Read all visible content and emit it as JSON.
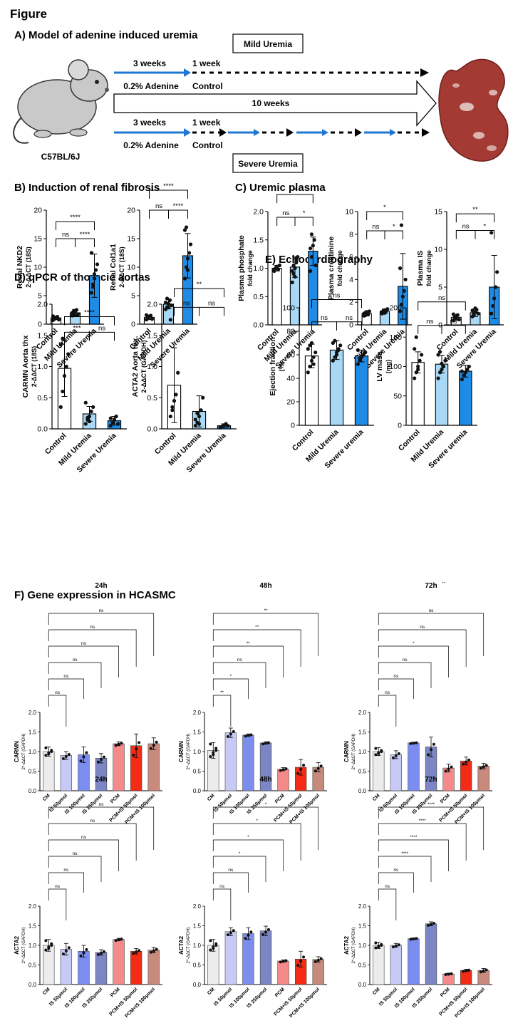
{
  "figure_title": "Figure",
  "panel_a": {
    "title": "A) Model of adenine induced uremia",
    "mild_label": "Mild Uremia",
    "severe_label": "Severe Uremia",
    "mouse_label": "C57BL/6J",
    "three_weeks": "3 weeks",
    "one_week": "1 week",
    "adenine": "0.2% Adenine",
    "control": "Control",
    "ten_weeks": "10 weeks",
    "colors": {
      "blue_arrow": "#1f77d4",
      "kidney": "#a33a34"
    }
  },
  "panel_b_title": "B) Induction of renal fibrosis",
  "panel_c_title": "C) Uremic plasma",
  "panel_d_title": "D) qPCR of thoracic aortas",
  "panel_e_title": "E) Echocardiography",
  "panel_f_title": "F) Gene expression in HCASMC",
  "colors": {
    "control": "#ffffff",
    "mild": "#a8d8f5",
    "severe": "#1e8ce6",
    "cm": "#ececec",
    "is50": "#c7c9f7",
    "is100": "#7b8ef0",
    "is250": "#7c86c4",
    "pcm": "#f58a8a",
    "pcm_is50": "#f52c15",
    "pcm_is100": "#c98a7e"
  },
  "chart_data": [
    {
      "id": "B1",
      "type": "bar",
      "ylabel": "Renal NKD2",
      "ylabel2": "2-ΔΔCT (18S)",
      "categories": [
        "Control",
        "Mild Uremia",
        "Severe Uremia"
      ],
      "values": [
        1.1,
        2.0,
        8.5
      ],
      "errors": [
        0.3,
        0.6,
        3.8
      ],
      "ylim": [
        0,
        20
      ],
      "yticks": [
        "0",
        "5",
        "10",
        "15",
        "20"
      ],
      "points": [
        [
          0.7,
          0.9,
          1.1,
          1.3,
          0.8,
          1.4,
          1.0
        ],
        [
          1.5,
          1.8,
          2.2,
          2.5,
          1.7,
          2.0,
          2.3,
          1.6
        ],
        [
          5.5,
          7.0,
          8.0,
          9.5,
          10.5,
          12.5,
          6.5,
          8.8
        ]
      ],
      "sig": [
        {
          "a": 0,
          "b": 1,
          "label": "ns",
          "y": 15
        },
        {
          "a": 1,
          "b": 2,
          "label": "****",
          "y": 15
        },
        {
          "a": 0,
          "b": 2,
          "label": "****",
          "y": 18
        }
      ]
    },
    {
      "id": "B2",
      "type": "bar",
      "ylabel": "Renal Col1a1",
      "ylabel2": "2-ΔΔCT (18S)",
      "categories": [
        "Control",
        "Mild Uremia",
        "Severe Uremia"
      ],
      "values": [
        1.2,
        3.5,
        12.0
      ],
      "errors": [
        0.4,
        0.8,
        3.9
      ],
      "ylim": [
        0,
        20
      ],
      "yticks": [
        "0",
        "5",
        "10",
        "15",
        "20"
      ],
      "points": [
        [
          0.8,
          1.0,
          1.3,
          1.5,
          0.9,
          1.6,
          1.2
        ],
        [
          2.6,
          3.0,
          3.6,
          4.2,
          3.3,
          3.8,
          4.5,
          2.9
        ],
        [
          8.0,
          10.0,
          11.5,
          12.5,
          14.0,
          16.5,
          17.0,
          9.5
        ]
      ],
      "sig": [
        {
          "a": 0,
          "b": 1,
          "label": "ns",
          "y": 20
        },
        {
          "a": 1,
          "b": 2,
          "label": "****",
          "y": 20
        },
        {
          "a": 0,
          "b": 2,
          "label": "****",
          "y": 23.5
        }
      ]
    },
    {
      "id": "C1",
      "type": "bar",
      "ylabel": "Plasma phosphate",
      "ylabel2": "fold change",
      "categories": [
        "Control",
        "Mild Uremia",
        "Severe Uremia"
      ],
      "values": [
        1.0,
        1.02,
        1.3
      ],
      "errors": [
        0.05,
        0.18,
        0.25
      ],
      "ylim": [
        0,
        2.0
      ],
      "yticks": [
        "0.0",
        "0.5",
        "1.0",
        "1.5",
        "2.0"
      ],
      "points": [
        [
          0.95,
          1.0,
          1.02,
          0.98,
          1.05,
          0.97,
          1.0,
          1.03
        ],
        [
          0.75,
          0.9,
          1.0,
          1.1,
          1.2,
          0.95,
          1.05,
          0.85,
          1.15
        ],
        [
          0.95,
          1.2,
          1.4,
          1.5,
          1.05,
          1.35,
          1.6
        ]
      ],
      "sig": [
        {
          "a": 0,
          "b": 1,
          "label": "ns",
          "y": 1.9
        },
        {
          "a": 1,
          "b": 2,
          "label": "*",
          "y": 1.9
        },
        {
          "a": 0,
          "b": 2,
          "label": "*",
          "y": 2.3
        }
      ]
    },
    {
      "id": "C2",
      "type": "bar",
      "ylabel": "Plasma creatinine",
      "ylabel2": "fold change",
      "categories": [
        "Control",
        "Mild Uremia",
        "Severe Uremia"
      ],
      "values": [
        1.0,
        1.2,
        3.4
      ],
      "errors": [
        0.2,
        0.2,
        2.9
      ],
      "ylim": [
        0,
        10
      ],
      "yticks": [
        "0",
        "2",
        "4",
        "6",
        "8",
        "10"
      ],
      "points": [
        [
          0.8,
          1.0,
          1.1,
          0.9,
          1.2,
          1.0,
          0.85,
          1.15
        ],
        [
          1.0,
          1.1,
          1.3,
          1.2,
          1.4,
          1.15,
          1.25,
          1.05
        ],
        [
          1.2,
          1.8,
          2.5,
          3.0,
          4.0,
          5.0,
          8.8
        ]
      ],
      "sig": [
        {
          "a": 0,
          "b": 1,
          "label": "ns",
          "y": 8.3
        },
        {
          "a": 1,
          "b": 2,
          "label": "*",
          "y": 8.3
        },
        {
          "a": 0,
          "b": 2,
          "label": "*",
          "y": 10.0
        }
      ]
    },
    {
      "id": "C3",
      "type": "bar",
      "ylabel": "Plasma IS",
      "ylabel2": "fold change",
      "categories": [
        "Control",
        "Mild Uremia",
        "Severe Uremia"
      ],
      "values": [
        1.0,
        1.6,
        5.0
      ],
      "errors": [
        0.4,
        0.5,
        4.2
      ],
      "ylim": [
        0,
        15
      ],
      "yticks": [
        "0",
        "5",
        "10",
        "15"
      ],
      "points": [
        [
          0.6,
          0.9,
          1.1,
          1.3,
          0.7,
          1.4,
          1.0,
          0.8
        ],
        [
          1.1,
          1.4,
          1.7,
          2.0,
          1.5,
          1.9,
          1.3,
          2.2
        ],
        [
          1.5,
          2.5,
          3.5,
          5.0,
          7.0,
          12.2
        ]
      ],
      "sig": [
        {
          "a": 0,
          "b": 1,
          "label": "ns",
          "y": 12.5
        },
        {
          "a": 1,
          "b": 2,
          "label": "*",
          "y": 12.5
        },
        {
          "a": 0,
          "b": 2,
          "label": "**",
          "y": 14.7
        }
      ]
    },
    {
      "id": "D1",
      "type": "bar",
      "ylabel": "CARMN Aorta thx",
      "ylabel2": "2-ΔΔCT (18S)",
      "categories": [
        "Control",
        "Mild Uremia",
        "Severe Uremia"
      ],
      "values": [
        0.97,
        0.24,
        0.13
      ],
      "errors": [
        0.45,
        0.12,
        0.07
      ],
      "ylim": [
        0,
        2.0
      ],
      "yticks": [
        "0.0",
        "0.5",
        "1.0",
        "1.5",
        "2.0"
      ],
      "points": [
        [
          0.35,
          0.6,
          0.85,
          1.0,
          1.2,
          1.35,
          1.45
        ],
        [
          0.08,
          0.15,
          0.2,
          0.28,
          0.35,
          0.42,
          0.18,
          0.12
        ],
        [
          0.05,
          0.1,
          0.15,
          0.2,
          0.08,
          0.17
        ]
      ],
      "sig": [
        {
          "a": 0,
          "b": 1,
          "label": "***",
          "y": 1.55
        },
        {
          "a": 1,
          "b": 2,
          "label": "ns",
          "y": 1.55
        },
        {
          "a": 0,
          "b": 2,
          "label": "****",
          "y": 1.8
        }
      ]
    },
    {
      "id": "D2",
      "type": "bar",
      "ylabel": "ACTA2 Aorta thx.",
      "ylabel2": "2-ΔΔCT (GAPDH)",
      "categories": [
        "Control",
        "Mild Uremia",
        "Severe Uremia"
      ],
      "values": [
        0.7,
        0.28,
        0.05
      ],
      "errors": [
        0.6,
        0.25,
        0.03
      ],
      "ylim": [
        0,
        2.0
      ],
      "yticks": [
        "0.0",
        "0.5",
        "1.0",
        "1.5",
        "2.0"
      ],
      "points": [
        [
          0.2,
          0.35,
          0.45,
          0.55,
          0.9,
          1.75,
          0.3
        ],
        [
          0.05,
          0.1,
          0.2,
          0.3,
          0.5,
          0.15,
          0.25,
          0.08
        ],
        [
          0.02,
          0.04,
          0.06,
          0.08,
          0.05,
          0.03
        ]
      ],
      "sig": [
        {
          "a": 0,
          "b": 1,
          "label": "ns",
          "y": 1.95
        },
        {
          "a": 1,
          "b": 2,
          "label": "ns",
          "y": 1.95
        },
        {
          "a": 0,
          "b": 2,
          "label": "**",
          "y": 2.25
        }
      ]
    },
    {
      "id": "E1",
      "type": "bar",
      "ylabel": "Ejection fraction",
      "ylabel2": "(%)",
      "categories": [
        "Control",
        "Mild Uremia",
        "Severe uremia"
      ],
      "values": [
        59,
        64,
        59
      ],
      "errors": [
        10,
        8,
        5
      ],
      "ylim": [
        0,
        100
      ],
      "yticks": [
        "0",
        "20",
        "40",
        "60",
        "80",
        "100"
      ],
      "points": [
        [
          45,
          50,
          55,
          58,
          62,
          65,
          68,
          70,
          52
        ],
        [
          55,
          58,
          62,
          65,
          68,
          70,
          72,
          60,
          64
        ],
        [
          52,
          55,
          58,
          60,
          62,
          64,
          57
        ]
      ],
      "sig": [
        {
          "a": 0,
          "b": 1,
          "label": "ns",
          "y": 88
        },
        {
          "a": 1,
          "b": 2,
          "label": "ns",
          "y": 88
        },
        {
          "a": 0,
          "b": 2,
          "label": "ns",
          "y": 107
        }
      ]
    },
    {
      "id": "E2",
      "type": "bar",
      "ylabel": "LV mass",
      "ylabel2": "(mg)",
      "categories": [
        "Control",
        "Mild Uremia",
        "Severe uremia"
      ],
      "values": [
        107,
        104,
        92
      ],
      "errors": [
        18,
        15,
        10
      ],
      "ylim": [
        0,
        200
      ],
      "yticks": [
        "0",
        "50",
        "100",
        "150",
        "200"
      ],
      "points": [
        [
          80,
          90,
          100,
          110,
          120,
          130,
          150,
          95
        ],
        [
          80,
          90,
          95,
          100,
          110,
          120,
          125,
          105
        ],
        [
          78,
          85,
          90,
          95,
          100,
          92
        ]
      ],
      "sig": [
        {
          "a": 0,
          "b": 1,
          "label": "ns",
          "y": 170
        },
        {
          "a": 1,
          "b": 2,
          "label": "ns",
          "y": 170
        },
        {
          "a": 0,
          "b": 2,
          "label": "ns",
          "y": 210
        }
      ],
      "footnote": "--"
    }
  ],
  "f_charts": {
    "categories": [
      "CM",
      "IS 50µmol",
      "IS 100µmol",
      "IS 250µmol",
      "PCM",
      "PCM+IS 50µmol",
      "PCM+IS 100µmol"
    ],
    "ylim": [
      0,
      2.0
    ],
    "yticks": [
      "0.0",
      "0.5",
      "1.0",
      "1.5",
      "2.0"
    ],
    "panels": [
      {
        "id": "F1",
        "title": "24h",
        "ylabel": "CARMN",
        "ylabel2": "2^-ΔΔCT (GAPDH)",
        "values": [
          1.0,
          0.9,
          0.92,
          0.83,
          1.2,
          1.15,
          1.2
        ],
        "errors": [
          0.12,
          0.1,
          0.2,
          0.12,
          0.05,
          0.3,
          0.15
        ],
        "sig": [
          "ns",
          "ns",
          "ns",
          "ns",
          "ns",
          "ns"
        ]
      },
      {
        "id": "F2",
        "title": "48h",
        "ylabel": "CARMN",
        "ylabel2": "2^-ΔΔCT (GAPDH)",
        "values": [
          1.03,
          1.48,
          1.42,
          1.22,
          0.55,
          0.6,
          0.6
        ],
        "errors": [
          0.2,
          0.12,
          0.03,
          0.03,
          0.04,
          0.2,
          0.12
        ],
        "sig": [
          "**",
          "*",
          "ns",
          "**",
          "**",
          "**"
        ]
      },
      {
        "id": "F3",
        "title": "72h",
        "ylabel": "CARMN",
        "ylabel2": "2^-ΔΔCT (GAPDH)",
        "values": [
          1.0,
          0.92,
          1.22,
          1.12,
          0.58,
          0.76,
          0.63
        ],
        "errors": [
          0.1,
          0.1,
          0.02,
          0.25,
          0.1,
          0.1,
          0.07
        ],
        "sig": [
          "ns",
          "ns",
          "ns",
          "*",
          "ns",
          "ns"
        ]
      },
      {
        "id": "F4",
        "title": "24h",
        "ylabel": "ACTA2",
        "ylabel2": "2^-ΔΔCT (GAPDH)",
        "values": [
          1.0,
          0.9,
          0.85,
          0.82,
          1.15,
          0.85,
          0.88
        ],
        "errors": [
          0.15,
          0.15,
          0.15,
          0.07,
          0.03,
          0.07,
          0.07
        ],
        "sig": [
          "ns",
          "ns",
          "ns",
          "ns",
          "ns",
          "ns"
        ]
      },
      {
        "id": "F5",
        "title": "48h",
        "ylabel": "ACTA2",
        "ylabel2": "2^-ΔΔCT (GAPDH)",
        "values": [
          1.0,
          1.35,
          1.3,
          1.37,
          0.6,
          0.65,
          0.64
        ],
        "errors": [
          0.15,
          0.1,
          0.15,
          0.12,
          0.03,
          0.2,
          0.07
        ],
        "sig": [
          "ns",
          "ns",
          "*",
          "*",
          "*",
          "*"
        ]
      },
      {
        "id": "F6",
        "title": "72h",
        "ylabel": "ACTA2",
        "ylabel2": "2^-ΔΔCT (GAPDH)",
        "values": [
          1.0,
          1.0,
          1.17,
          1.55,
          0.27,
          0.36,
          0.36
        ],
        "errors": [
          0.08,
          0.05,
          0.02,
          0.05,
          0.02,
          0.03,
          0.05
        ],
        "sig": [
          "ns",
          "ns",
          "****",
          "****",
          "****",
          "****"
        ]
      }
    ]
  }
}
